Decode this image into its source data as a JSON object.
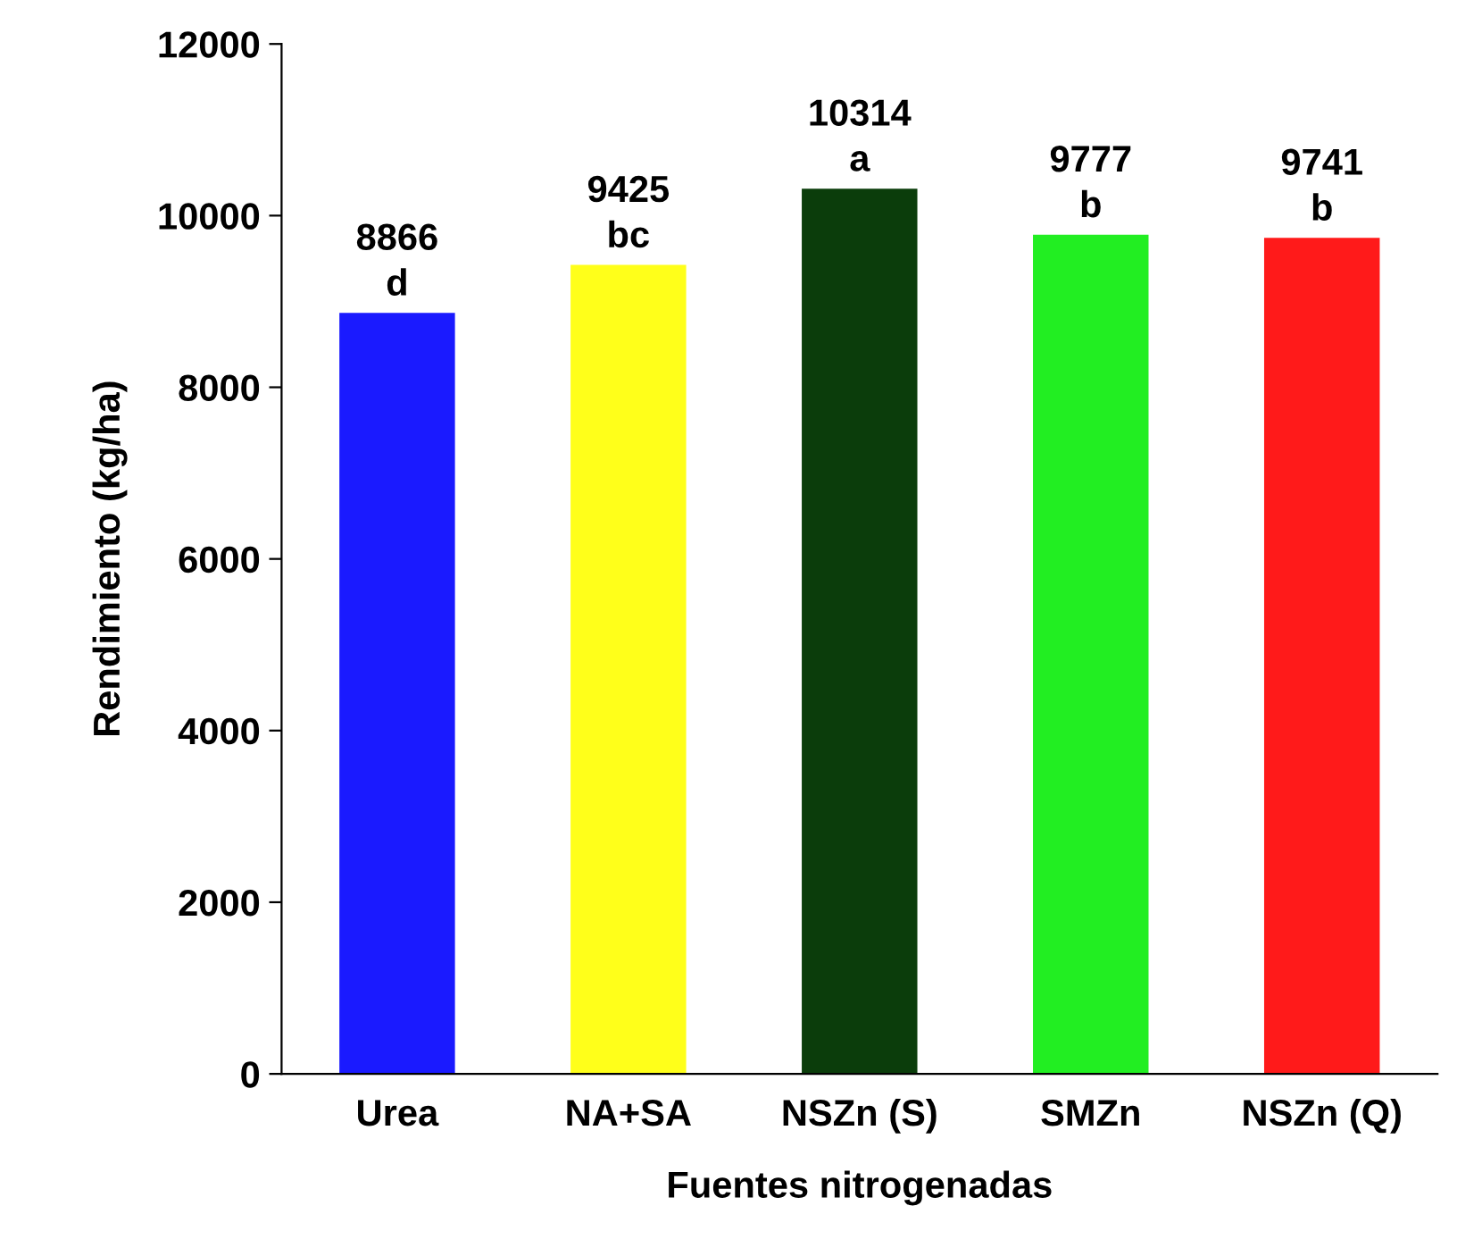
{
  "chart_data": {
    "type": "bar",
    "xlabel": "Fuentes nitrogenadas",
    "ylabel": "Rendimiento (kg/ha)",
    "categories": [
      "Urea",
      "NA+SA",
      "NSZn (S)",
      "SMZn",
      "NSZn (Q)"
    ],
    "values": [
      8866,
      9425,
      10314,
      9777,
      9741
    ],
    "colors": [
      "#1a1aff",
      "#ffff1a",
      "#0b3d0b",
      "#22ee22",
      "#ff1a1a"
    ],
    "value_labels": [
      "8866\nd",
      "9425\nbc",
      "10314\na",
      "9777\nb",
      "9741\nb"
    ],
    "ylim": [
      0,
      12000
    ],
    "yticks": [
      0,
      2000,
      4000,
      6000,
      8000,
      10000,
      12000
    ],
    "grid": false,
    "legend": false
  }
}
